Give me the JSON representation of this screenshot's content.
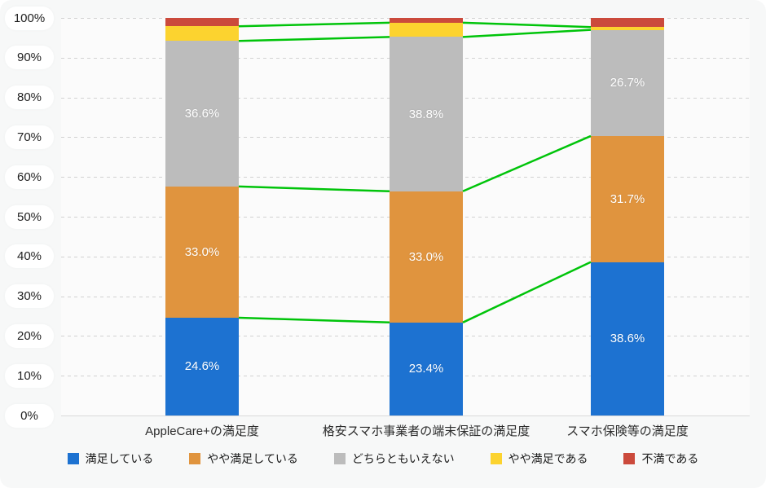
{
  "chart_data": {
    "type": "bar",
    "subtype": "stacked-percentage-columns-with-trend-lines",
    "title": "",
    "categories": [
      "AppleCare+の満足度",
      "格安スマホ事業者の端末保証の満足度",
      "スマホ保険等の満足度"
    ],
    "series": [
      {
        "name": "満足している",
        "color": "#1d72d1",
        "values": [
          24.6,
          23.4,
          38.6
        ],
        "labels": [
          "24.6%",
          "23.4%",
          "38.6%"
        ]
      },
      {
        "name": "やや満足している",
        "color": "#e0943e",
        "values": [
          33.0,
          33.0,
          31.7
        ],
        "labels": [
          "33.0%",
          "33.0%",
          "31.7%"
        ]
      },
      {
        "name": "どちらともいえない",
        "color": "#bcbcbc",
        "values": [
          36.6,
          38.8,
          26.7
        ],
        "labels": [
          "36.6%",
          "38.8%",
          "26.7%"
        ]
      },
      {
        "name": "やや満足である",
        "color": "#fcd32f",
        "values": [
          3.7,
          3.6,
          0.7
        ],
        "labels": [
          "",
          "",
          ""
        ]
      },
      {
        "name": "不満である",
        "color": "#cb4a3c",
        "values": [
          2.1,
          1.2,
          2.3
        ],
        "labels": [
          "",
          "",
          ""
        ]
      }
    ],
    "y_ticks": [
      "100%",
      "90%",
      "80%",
      "70%",
      "60%",
      "50%",
      "40%",
      "30%",
      "20%",
      "10%",
      "0%"
    ],
    "ylim": [
      0,
      100
    ],
    "grid": "horizontal-dashed",
    "legend_position": "bottom",
    "trend_line_color": "#00c40a",
    "trend_lines_connect": "cumulative segment tops of series 1-4 between adjacent bars"
  },
  "colors": {
    "background": "#f7f8f8",
    "plot_background": "#fbfbfb",
    "gridline": "#d2d2d2",
    "axis_line": "#d9d9d9",
    "tick_pill": "#ffffff",
    "segment_label_text": "#ffffff"
  }
}
